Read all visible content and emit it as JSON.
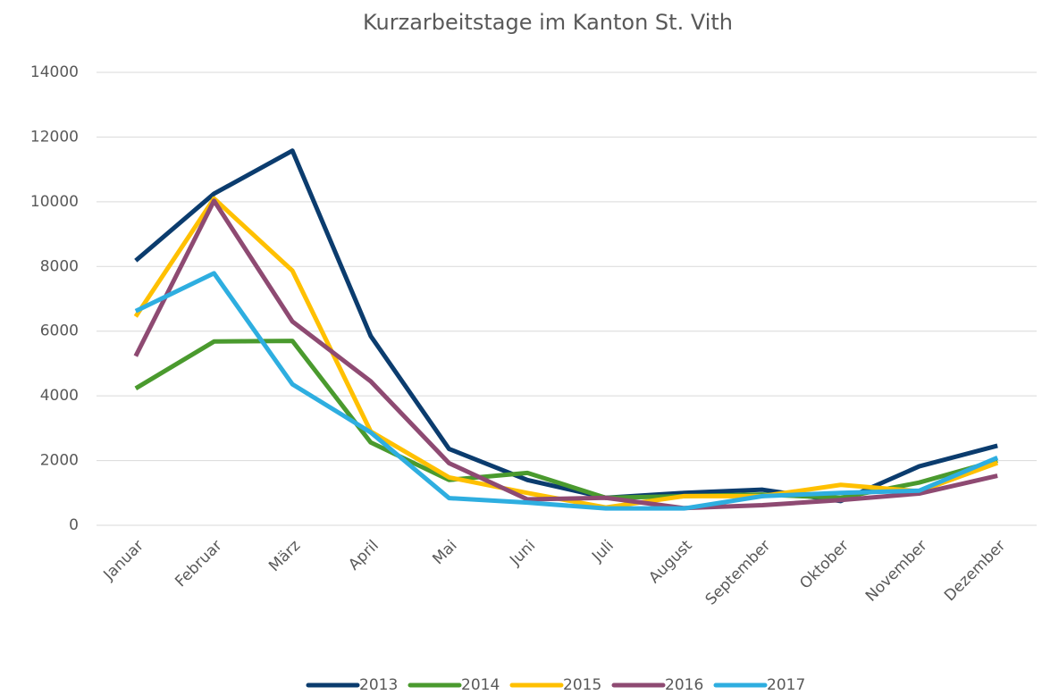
{
  "chart_data": {
    "type": "line",
    "title": "Kurzarbeitstage im Kanton St. Vith",
    "categories": [
      "Januar",
      "Februar",
      "März",
      "April",
      "Mai",
      "Juni",
      "Juli",
      "August",
      "September",
      "Oktober",
      "November",
      "Dezember"
    ],
    "series": [
      {
        "name": "2013",
        "color": "#0b3c6e",
        "values": [
          8180,
          10250,
          11580,
          5850,
          2360,
          1400,
          850,
          1000,
          1100,
          750,
          1820,
          2460
        ]
      },
      {
        "name": "2014",
        "color": "#4a9a2e",
        "values": [
          4230,
          5680,
          5700,
          2560,
          1400,
          1620,
          850,
          900,
          950,
          850,
          1320,
          2000
        ]
      },
      {
        "name": "2015",
        "color": "#ffc000",
        "values": [
          6450,
          10100,
          7870,
          2900,
          1480,
          1000,
          550,
          900,
          900,
          1250,
          1050,
          1930
        ]
      },
      {
        "name": "2016",
        "color": "#8e4a72",
        "values": [
          5230,
          10030,
          6300,
          4450,
          1920,
          800,
          850,
          530,
          620,
          780,
          980,
          1530
        ]
      },
      {
        "name": "2017",
        "color": "#2eaee0",
        "values": [
          6620,
          7790,
          4360,
          2870,
          840,
          700,
          520,
          520,
          900,
          1000,
          1070,
          2090
        ]
      }
    ],
    "ylim": [
      0,
      14000
    ],
    "yticks": [
      0,
      2000,
      4000,
      6000,
      8000,
      10000,
      12000,
      14000
    ],
    "grid": true,
    "legend": "bottom"
  }
}
